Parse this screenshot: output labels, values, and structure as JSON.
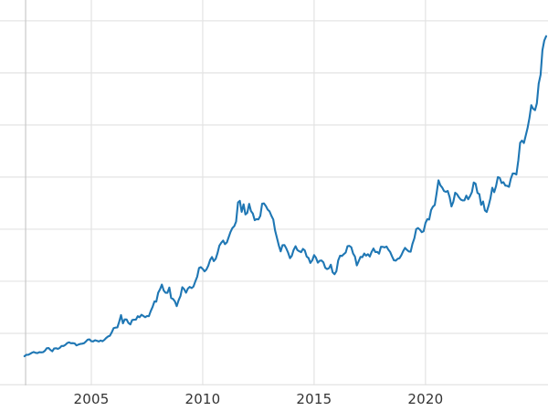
{
  "chart_data": {
    "type": "line",
    "title": "",
    "xlabel": "",
    "ylabel": "",
    "legend": "none",
    "grid": true,
    "background": "#ffffff",
    "line_color": "#1f77b4",
    "grid_color": "#e3e3e3",
    "spine_color": "#c9c9c9",
    "tick_label_color": "#333333",
    "xlim": [
      2000.9,
      2025.5
    ],
    "ylim": [
      0,
      3700
    ],
    "left_spine_x": 2002.05,
    "y_gridlines": [
      0,
      500,
      1000,
      1500,
      2000,
      2500,
      3000,
      3500
    ],
    "x_ticks": [
      {
        "value": 2005,
        "label": "2005"
      },
      {
        "value": 2010,
        "label": "2010"
      },
      {
        "value": 2015,
        "label": "2015"
      },
      {
        "value": 2020,
        "label": "2020"
      }
    ],
    "x_start": 2002.0,
    "x_step": 0.0833333,
    "values": [
      281,
      295,
      294,
      303,
      314,
      321,
      313,
      310,
      319,
      317,
      319,
      333,
      357,
      359,
      340,
      328,
      355,
      357,
      351,
      360,
      379,
      379,
      389,
      407,
      414,
      405,
      406,
      403,
      384,
      392,
      398,
      401,
      405,
      420,
      439,
      442,
      424,
      423,
      434,
      429,
      422,
      431,
      424,
      437,
      456,
      470,
      477,
      510,
      550,
      555,
      557,
      611,
      675,
      596,
      634,
      633,
      599,
      586,
      628,
      630,
      631,
      665,
      655,
      679,
      667,
      655,
      666,
      665,
      713,
      755,
      806,
      804,
      890,
      923,
      968,
      910,
      889,
      889,
      940,
      839,
      830,
      807,
      761,
      816,
      858,
      943,
      924,
      890,
      929,
      946,
      935,
      949,
      997,
      1043,
      1127,
      1135,
      1118,
      1095,
      1113,
      1149,
      1205,
      1233,
      1193,
      1216,
      1271,
      1342,
      1370,
      1391,
      1356,
      1373,
      1424,
      1474,
      1512,
      1529,
      1573,
      1756,
      1772,
      1666,
      1739,
      1641,
      1656,
      1743,
      1674,
      1650,
      1586,
      1597,
      1594,
      1627,
      1745,
      1747,
      1722,
      1688,
      1671,
      1627,
      1593,
      1487,
      1414,
      1343,
      1287,
      1347,
      1348,
      1316,
      1276,
      1221,
      1244,
      1301,
      1336,
      1299,
      1288,
      1279,
      1311,
      1296,
      1237,
      1223,
      1176,
      1201,
      1251,
      1227,
      1178,
      1197,
      1199,
      1181,
      1130,
      1117,
      1125,
      1159,
      1086,
      1068,
      1097,
      1200,
      1246,
      1242,
      1260,
      1276,
      1337,
      1340,
      1327,
      1266,
      1238,
      1152,
      1192,
      1234,
      1231,
      1266,
      1246,
      1260,
      1237,
      1283,
      1314,
      1280,
      1282,
      1264,
      1331,
      1330,
      1325,
      1334,
      1303,
      1281,
      1238,
      1201,
      1198,
      1215,
      1221,
      1250,
      1291,
      1320,
      1301,
      1286,
      1284,
      1359,
      1413,
      1500,
      1511,
      1495,
      1471,
      1480,
      1561,
      1597,
      1592,
      1683,
      1716,
      1732,
      1843,
      1969,
      1922,
      1900,
      1866,
      1858,
      1867,
      1808,
      1718,
      1762,
      1850,
      1835,
      1807,
      1784,
      1776,
      1777,
      1822,
      1787,
      1817,
      1856,
      1948,
      1937,
      1848,
      1837,
      1733,
      1766,
      1681,
      1665,
      1726,
      1797,
      1898,
      1855,
      1913,
      2000,
      1992,
      1943,
      1951,
      1918,
      1916,
      1907,
      1984,
      2035,
      2034,
      2025,
      2160,
      2330,
      2351,
      2327,
      2398,
      2470,
      2568,
      2690,
      2657,
      2643,
      2708,
      2897,
      2983,
      3218,
      3310,
      3353
    ]
  }
}
